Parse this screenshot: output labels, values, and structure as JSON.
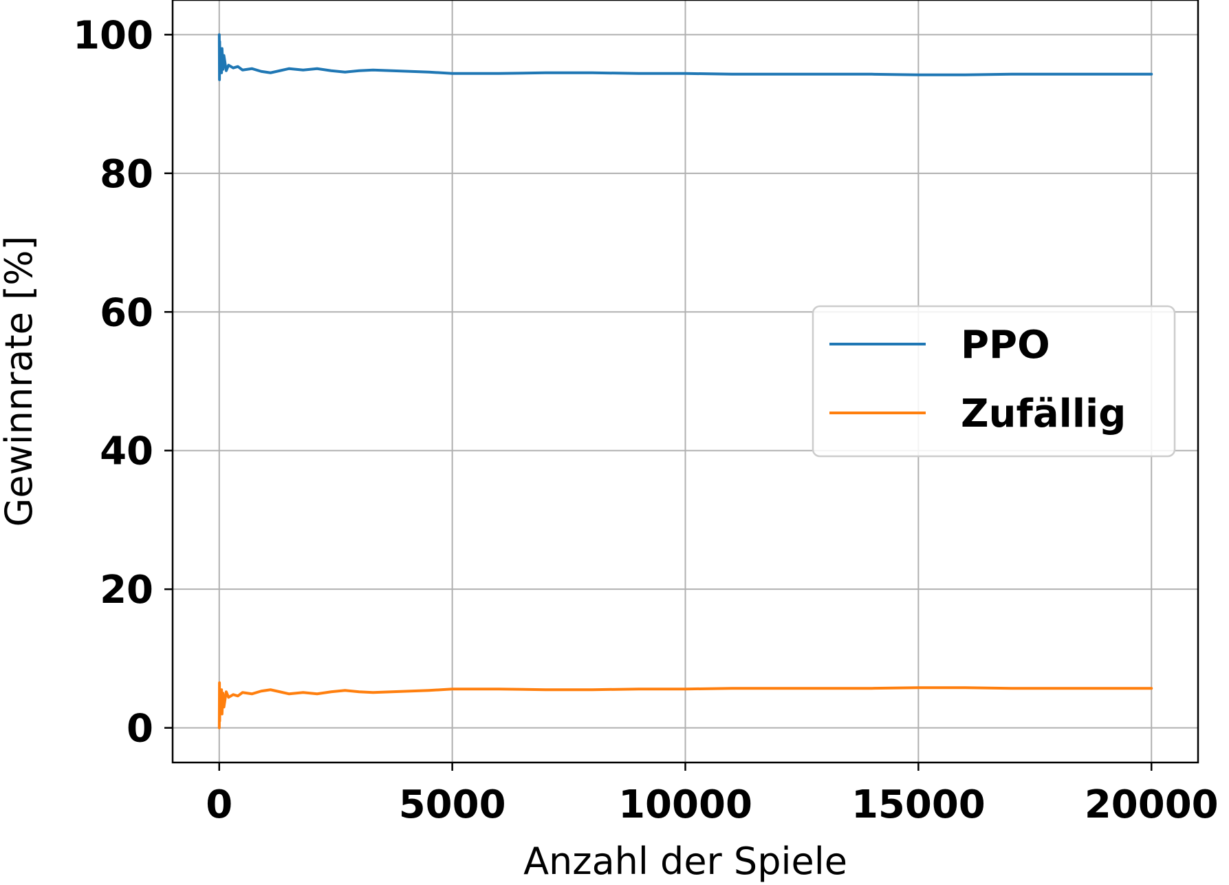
{
  "chart_data": {
    "type": "line",
    "title": "",
    "xlabel": "Anzahl der Spiele",
    "ylabel": "Gewinnrate [%]",
    "xlim": [
      -1000,
      21000
    ],
    "ylim": [
      -5,
      105
    ],
    "xticks": [
      0,
      5000,
      10000,
      15000,
      20000
    ],
    "xtick_labels": [
      "0",
      "5000",
      "10000",
      "15000",
      "20000"
    ],
    "yticks": [
      0,
      20,
      40,
      60,
      80,
      100
    ],
    "ytick_labels": [
      "0",
      "20",
      "40",
      "60",
      "80",
      "100"
    ],
    "grid": true,
    "legend_position": "center-right",
    "series": [
      {
        "name": "PPO",
        "color": "#1f77b4",
        "x": [
          1,
          5,
          10,
          15,
          20,
          30,
          40,
          50,
          60,
          80,
          100,
          150,
          200,
          300,
          400,
          500,
          700,
          900,
          1100,
          1300,
          1500,
          1800,
          2100,
          2400,
          2700,
          3000,
          3300,
          3700,
          4100,
          4500,
          5000,
          6000,
          7000,
          8000,
          9000,
          10000,
          11000,
          12000,
          13000,
          14000,
          15000,
          16000,
          17000,
          18000,
          19000,
          20000
        ],
        "y": [
          100,
          93.5,
          99,
          94.5,
          97.5,
          95.5,
          96.5,
          94.5,
          98,
          95,
          97,
          94.8,
          95.6,
          95.2,
          95.4,
          94.9,
          95.1,
          94.7,
          94.5,
          94.8,
          95.1,
          94.9,
          95.1,
          94.8,
          94.6,
          94.8,
          94.9,
          94.8,
          94.7,
          94.6,
          94.4,
          94.4,
          94.5,
          94.5,
          94.4,
          94.4,
          94.3,
          94.3,
          94.3,
          94.3,
          94.2,
          94.2,
          94.3,
          94.3,
          94.3,
          94.3
        ]
      },
      {
        "name": "Zufällig",
        "color": "#ff7f0e",
        "x": [
          1,
          5,
          10,
          15,
          20,
          30,
          40,
          50,
          60,
          80,
          100,
          150,
          200,
          300,
          400,
          500,
          700,
          900,
          1100,
          1300,
          1500,
          1800,
          2100,
          2400,
          2700,
          3000,
          3300,
          3700,
          4100,
          4500,
          5000,
          6000,
          7000,
          8000,
          9000,
          10000,
          11000,
          12000,
          13000,
          14000,
          15000,
          16000,
          17000,
          18000,
          19000,
          20000
        ],
        "y": [
          0,
          6.5,
          1,
          5.5,
          2.5,
          4.5,
          3.5,
          5.5,
          2,
          5,
          3,
          5.2,
          4.4,
          4.8,
          4.6,
          5.1,
          4.9,
          5.3,
          5.5,
          5.2,
          4.9,
          5.1,
          4.9,
          5.2,
          5.4,
          5.2,
          5.1,
          5.2,
          5.3,
          5.4,
          5.6,
          5.6,
          5.5,
          5.5,
          5.6,
          5.6,
          5.7,
          5.7,
          5.7,
          5.7,
          5.8,
          5.8,
          5.7,
          5.7,
          5.7,
          5.7
        ]
      }
    ]
  }
}
